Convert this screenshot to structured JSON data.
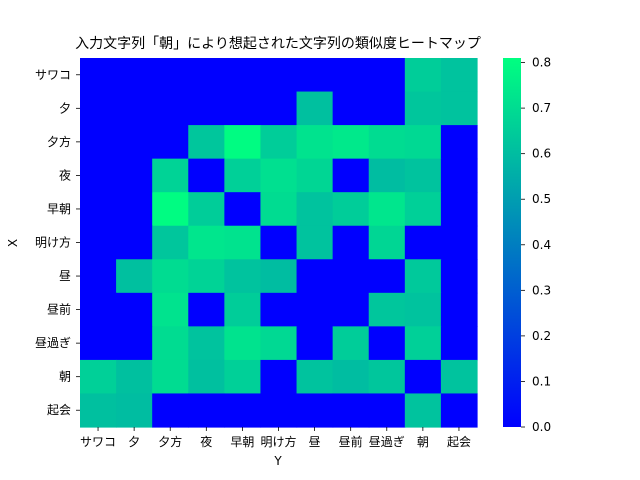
{
  "chart_data": {
    "type": "heatmap",
    "title": "入力文字列「朝」により想起された文字列の類似度ヒートマップ",
    "xlabel": "Y",
    "ylabel": "X",
    "x_categories": [
      "サワコ",
      "夕",
      "夕方",
      "夜",
      "早朝",
      "明け方",
      "昼",
      "昼前",
      "昼過ぎ",
      "朝",
      "起会"
    ],
    "y_categories": [
      "サワコ",
      "夕",
      "夕方",
      "夜",
      "早朝",
      "明け方",
      "昼",
      "昼前",
      "昼過ぎ",
      "朝",
      "起会"
    ],
    "values": [
      [
        0,
        0,
        0,
        0,
        0,
        0,
        0,
        0,
        0,
        0.65,
        0.62
      ],
      [
        0,
        0,
        0,
        0,
        0,
        0,
        0.61,
        0,
        0,
        0.63,
        0.62
      ],
      [
        0,
        0,
        0,
        0.63,
        0.8,
        0.65,
        0.72,
        0.74,
        0.7,
        0.69,
        0
      ],
      [
        0,
        0,
        0.67,
        0,
        0.66,
        0.71,
        0.68,
        0,
        0.6,
        0.62,
        0
      ],
      [
        0,
        0,
        0.8,
        0.65,
        0,
        0.7,
        0.62,
        0.65,
        0.73,
        0.66,
        0
      ],
      [
        0,
        0,
        0.63,
        0.73,
        0.72,
        0,
        0.62,
        0,
        0.68,
        0,
        0
      ],
      [
        0,
        0.61,
        0.7,
        0.67,
        0.62,
        0.6,
        0,
        0,
        0,
        0.64,
        0
      ],
      [
        0,
        0,
        0.72,
        0,
        0.65,
        0,
        0,
        0,
        0.63,
        0.62,
        0
      ],
      [
        0,
        0,
        0.7,
        0.62,
        0.72,
        0.69,
        0,
        0.65,
        0,
        0.66,
        0
      ],
      [
        0.66,
        0.61,
        0.7,
        0.61,
        0.66,
        0,
        0.62,
        0.6,
        0.63,
        0,
        0.62
      ],
      [
        0.61,
        0.6,
        0,
        0,
        0,
        0,
        0,
        0,
        0,
        0.62,
        0
      ]
    ],
    "colorbar": {
      "ticks": [
        "0.0",
        "0.1",
        "0.2",
        "0.3",
        "0.4",
        "0.5",
        "0.6",
        "0.7",
        "0.8"
      ],
      "range": [
        0,
        0.81
      ]
    },
    "colormap": {
      "low": "#0000ff",
      "high": "#00ff80"
    },
    "grid": false,
    "legend": "right colorbar"
  }
}
